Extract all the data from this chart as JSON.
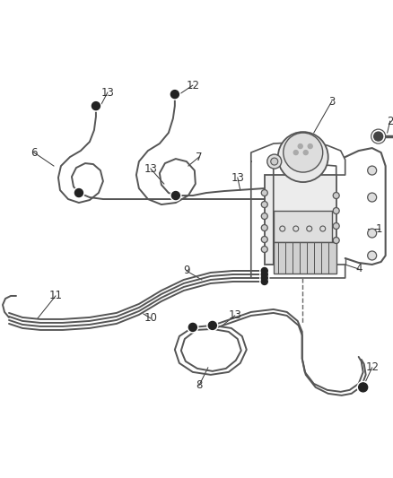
{
  "bg_color": "#ffffff",
  "line_color": "#555555",
  "dark_color": "#333333",
  "label_color": "#333333",
  "lw_tube": 1.4,
  "lw_thick": 2.0,
  "fitting_r": 4.5,
  "fitting_color": "#222222"
}
